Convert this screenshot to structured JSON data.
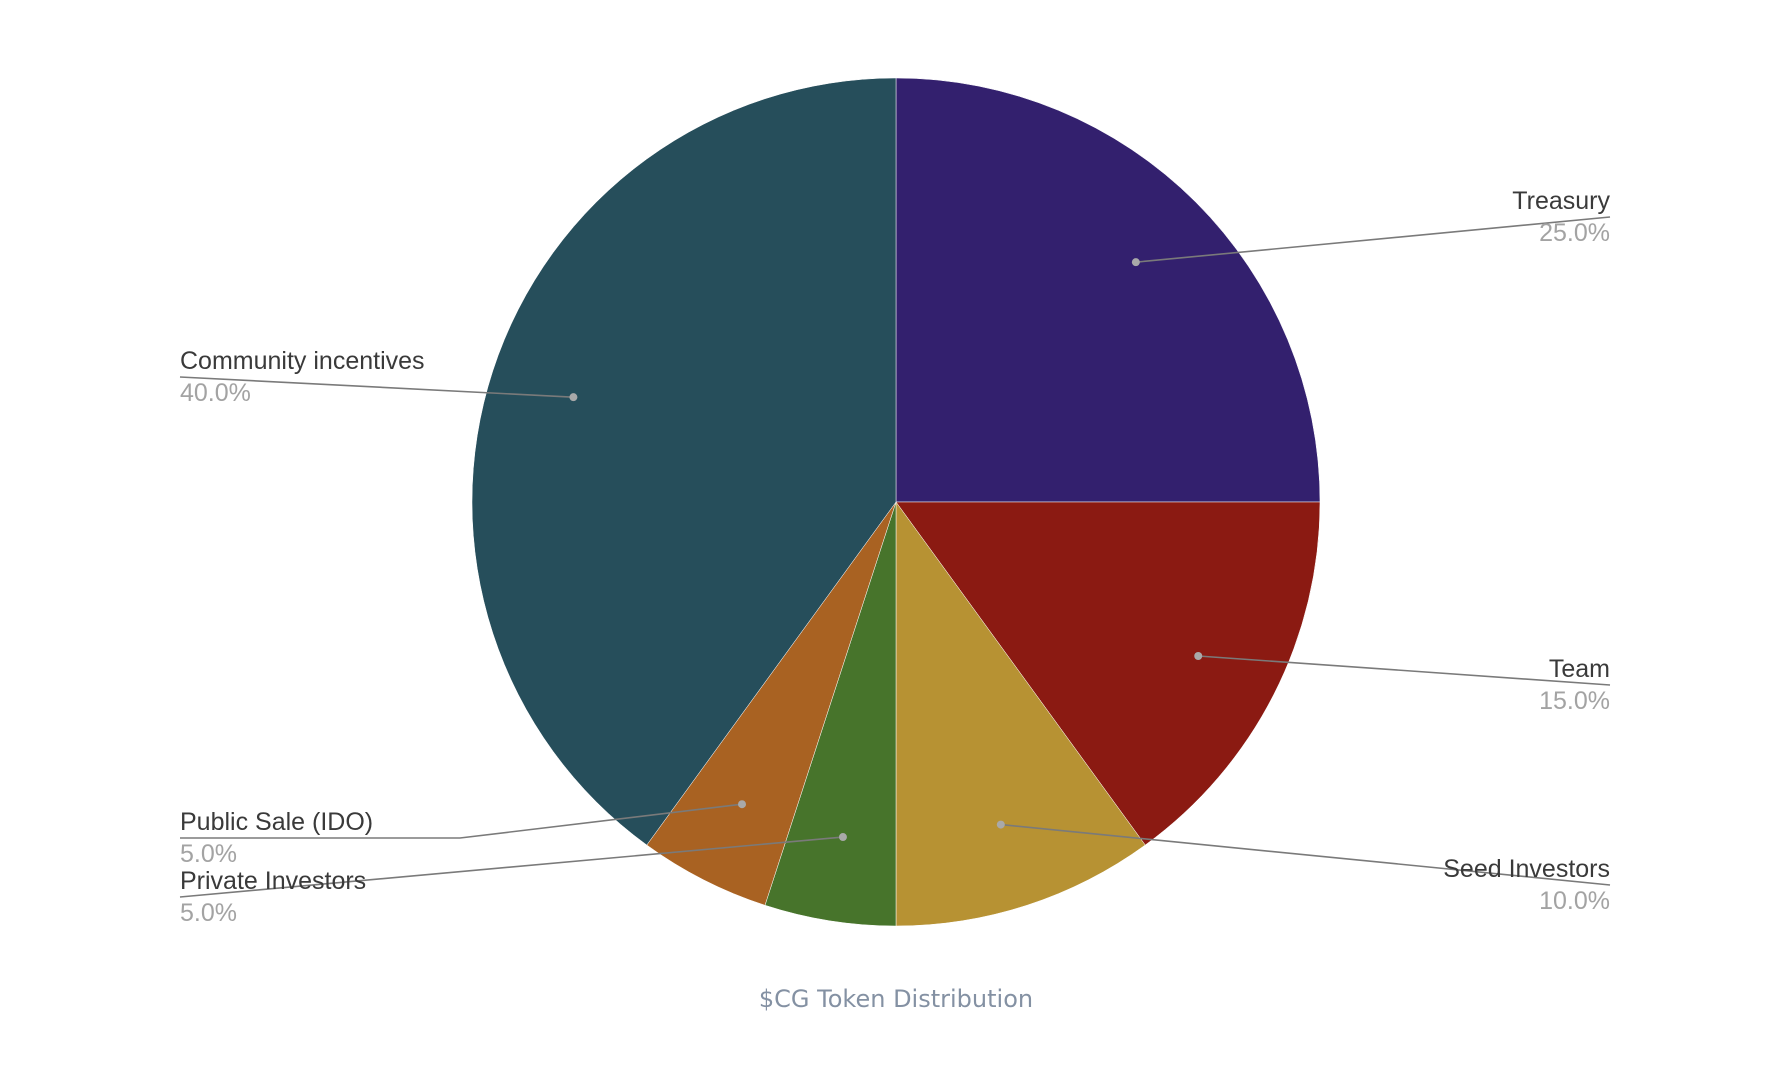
{
  "chart_data": {
    "type": "pie",
    "caption": "$CG Token Distribution",
    "slices": [
      {
        "label": "Treasury",
        "value": 25.0,
        "display": "25.0%",
        "color": "#33206e",
        "side": "right"
      },
      {
        "label": "Team",
        "value": 15.0,
        "display": "15.0%",
        "color": "#8b1a12",
        "side": "right"
      },
      {
        "label": "Seed Investors",
        "value": 10.0,
        "display": "10.0%",
        "color": "#b79233",
        "side": "right"
      },
      {
        "label": "Private Investors",
        "value": 5.0,
        "display": "5.0%",
        "color": "#47742b",
        "side": "left"
      },
      {
        "label": "Public Sale (IDO)",
        "value": 5.0,
        "display": "5.0%",
        "color": "#a96222",
        "side": "left"
      },
      {
        "label": "Community incentives",
        "value": 40.0,
        "display": "40.0%",
        "color": "#264e5b",
        "side": "left"
      }
    ],
    "start_angle": "12 o'clock",
    "direction": "clockwise",
    "legend": "none (inline labels)"
  }
}
